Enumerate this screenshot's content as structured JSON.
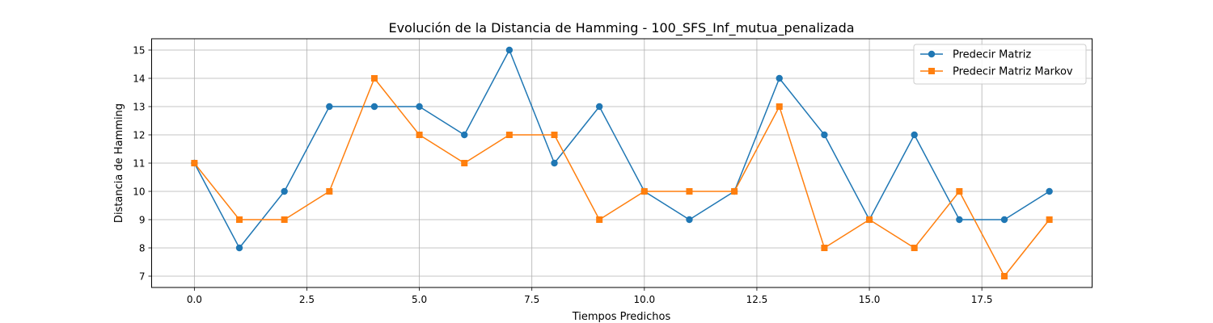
{
  "chart_data": {
    "type": "line",
    "title": "Evolución de la Distancia de Hamming - 100_SFS_Inf_mutua_penalizada",
    "xlabel": "Tiempos Predichos",
    "ylabel": "Distancia de Hamming",
    "xlim": [
      -0.95,
      19.95
    ],
    "ylim": [
      6.6,
      15.4
    ],
    "xticks": [
      0.0,
      2.5,
      5.0,
      7.5,
      10.0,
      12.5,
      15.0,
      17.5
    ],
    "xtick_labels": [
      "0.0",
      "2.5",
      "5.0",
      "7.5",
      "10.0",
      "12.5",
      "15.0",
      "17.5"
    ],
    "yticks": [
      7,
      8,
      9,
      10,
      11,
      12,
      13,
      14,
      15
    ],
    "ytick_labels": [
      "7",
      "8",
      "9",
      "10",
      "11",
      "12",
      "13",
      "14",
      "15"
    ],
    "grid": true,
    "legend_position": "top-right",
    "x": [
      0,
      1,
      2,
      3,
      4,
      5,
      6,
      7,
      8,
      9,
      10,
      11,
      12,
      13,
      14,
      15,
      16,
      17,
      18,
      19
    ],
    "series": [
      {
        "name": "Predecir Matriz",
        "color": "#1f77b4",
        "marker": "circle",
        "values": [
          11,
          8,
          10,
          13,
          13,
          13,
          12,
          15,
          11,
          13,
          10,
          9,
          10,
          14,
          12,
          9,
          12,
          9,
          9,
          10
        ]
      },
      {
        "name": "Predecir Matriz Markov",
        "color": "#ff7f0e",
        "marker": "square",
        "values": [
          11,
          9,
          9,
          10,
          14,
          12,
          11,
          12,
          12,
          9,
          10,
          10,
          10,
          13,
          8,
          9,
          8,
          10,
          7,
          9
        ]
      }
    ]
  }
}
